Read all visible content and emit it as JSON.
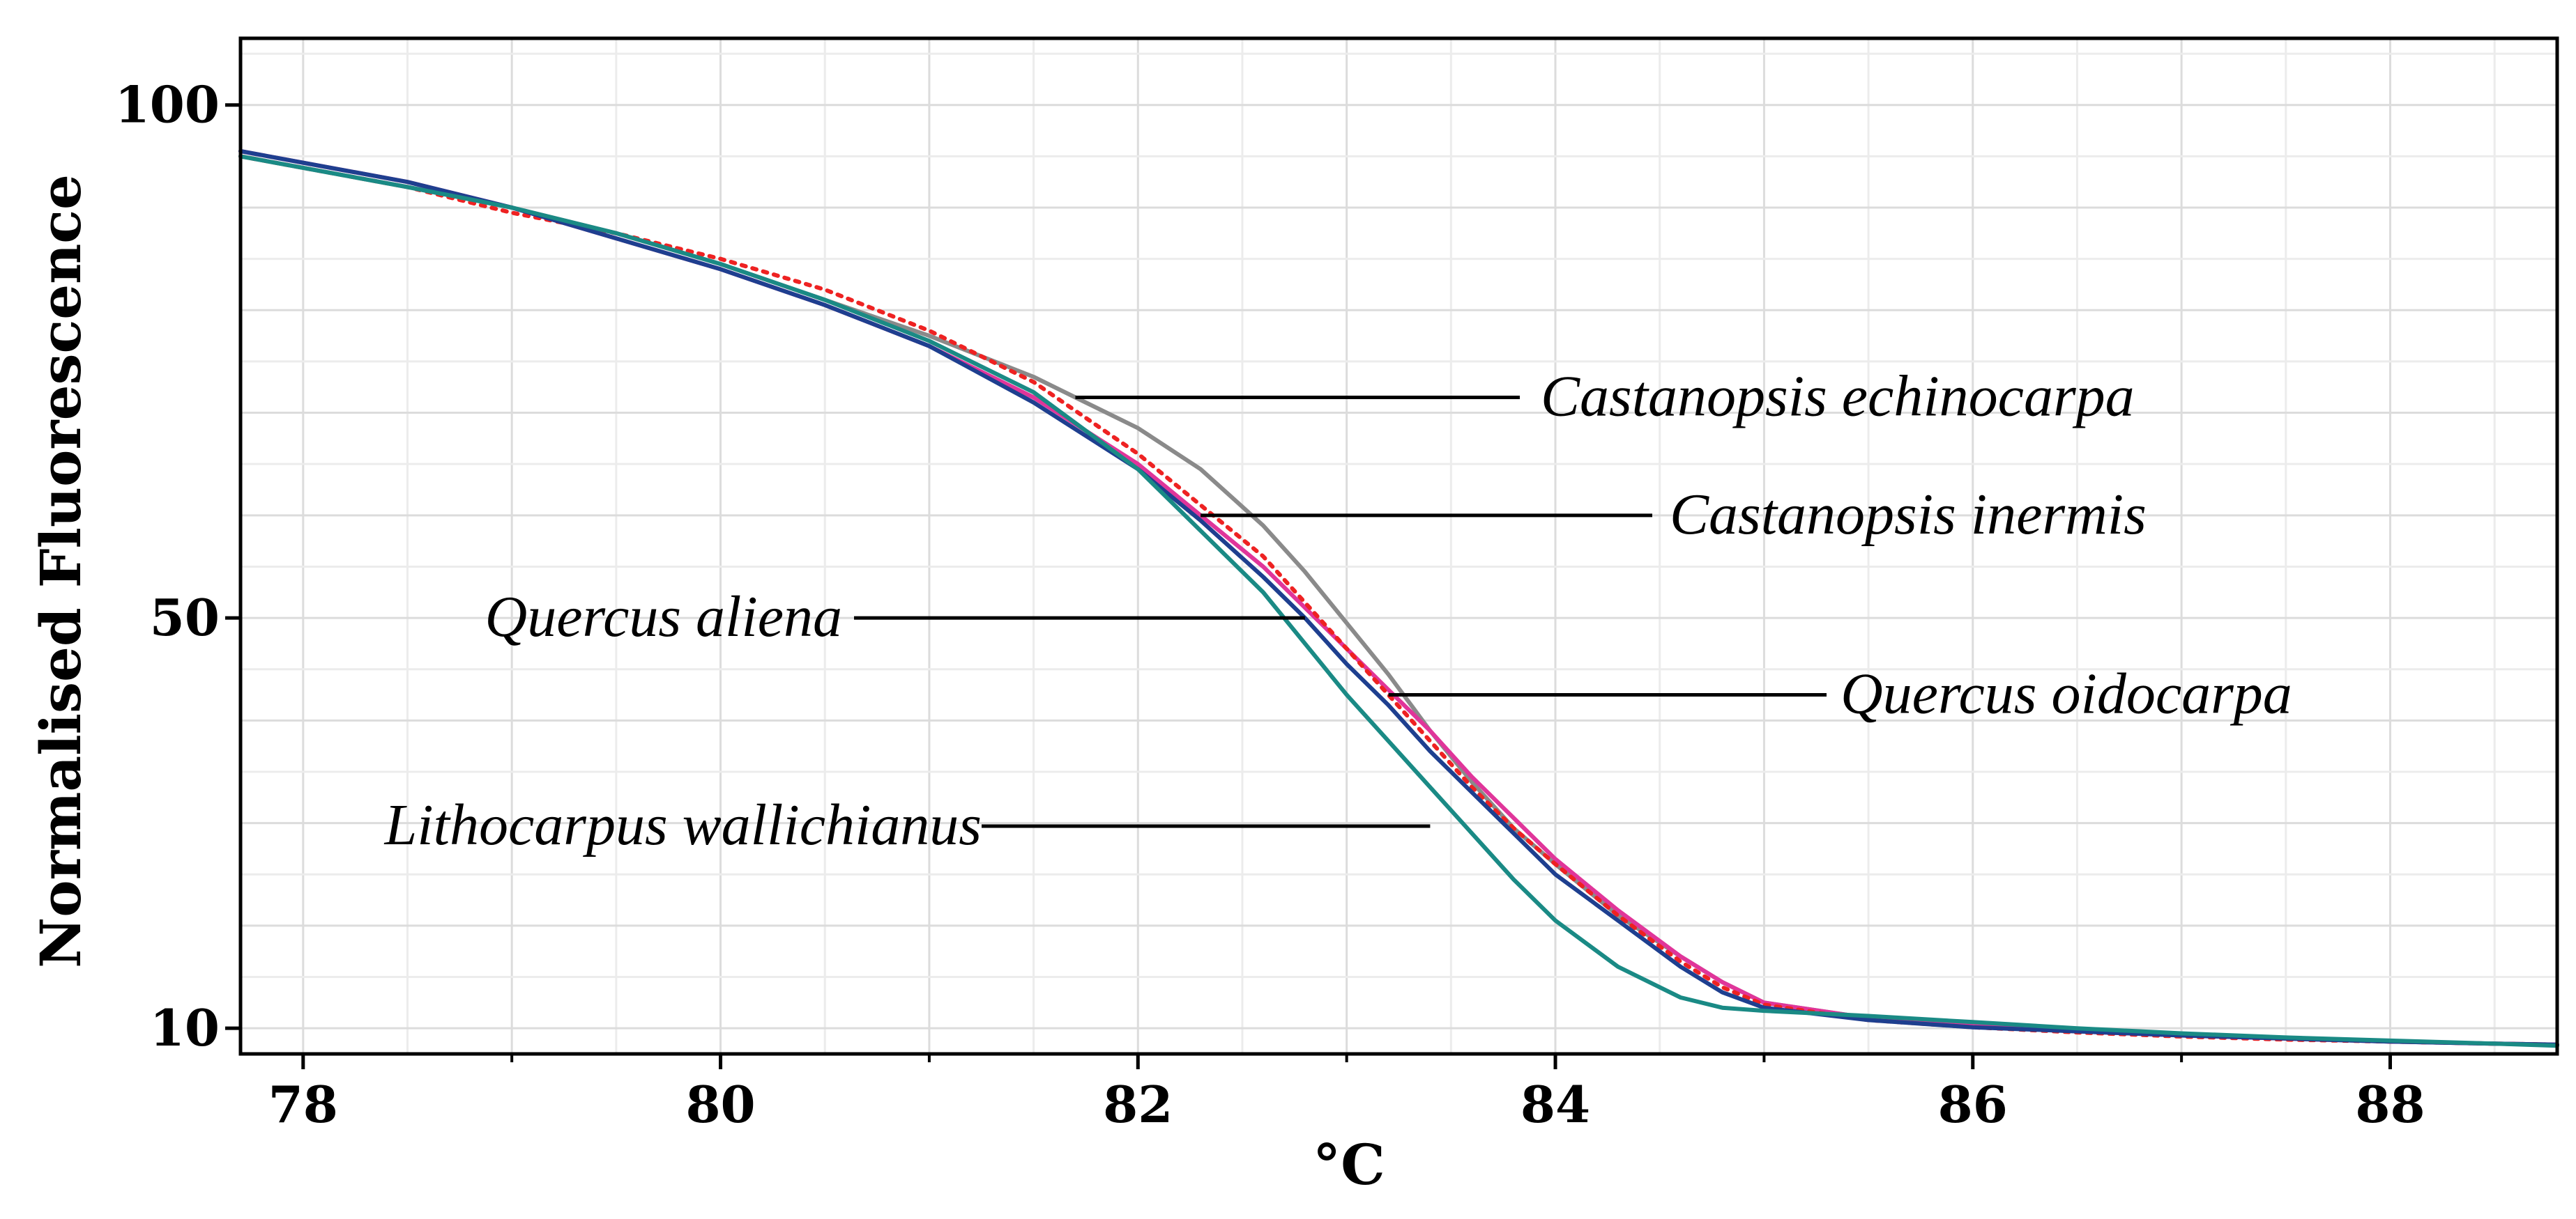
{
  "chart_data": {
    "type": "line",
    "title": "",
    "xlabel": "°C",
    "ylabel": "Normalised Fluorescence",
    "xlim": [
      77.7,
      88.8
    ],
    "ylim": [
      7.5,
      106.5
    ],
    "x_ticks": [
      78,
      80,
      82,
      84,
      86,
      88
    ],
    "x_tick_labels": [
      "78",
      "80",
      "82",
      "84",
      "86",
      "88"
    ],
    "y_ticks": [
      10,
      50,
      100
    ],
    "y_tick_labels": [
      "10",
      "50",
      "100"
    ],
    "grid": true,
    "legend": "none",
    "series": [
      {
        "name": "Castanopsis echinocarpa",
        "color": "#8a8a8a",
        "dash": "solid",
        "x": [
          77.7,
          78.5,
          79.0,
          79.5,
          80.0,
          80.5,
          81.0,
          81.5,
          81.7,
          82.0,
          82.3,
          82.6,
          82.8,
          83.0,
          83.2,
          83.4,
          83.6,
          83.8,
          84.0,
          84.3,
          84.6,
          84.8,
          85.0,
          85.5,
          86.0,
          86.5,
          87.0,
          87.5,
          88.0,
          88.5,
          88.8
        ],
        "y": [
          95,
          92,
          90,
          87.5,
          84.5,
          81,
          77.5,
          73.5,
          71.5,
          68.5,
          64.5,
          59,
          54.5,
          49.5,
          44.5,
          39,
          34,
          29.5,
          26,
          21,
          17,
          14.5,
          12.5,
          11,
          10.3,
          9.8,
          9.4,
          9,
          8.7,
          8.5,
          8.4
        ]
      },
      {
        "name": "Castanopsis inermis",
        "color": "#e0359a",
        "dash": "solid",
        "x": [
          77.7,
          78.5,
          79.0,
          79.5,
          80.0,
          80.5,
          81.0,
          81.5,
          82.0,
          82.3,
          82.6,
          82.8,
          83.0,
          83.2,
          83.4,
          83.6,
          83.8,
          84.0,
          84.3,
          84.6,
          84.8,
          85.0,
          85.5,
          86.0,
          86.5,
          87.0,
          87.5,
          88.0,
          88.5,
          88.8
        ],
        "y": [
          95.5,
          92.5,
          90,
          87,
          84,
          80.5,
          76.5,
          71.5,
          65,
          60,
          55,
          51,
          47,
          43,
          39,
          34.5,
          30.5,
          26.5,
          21.5,
          17,
          14.5,
          12.5,
          11,
          10.2,
          9.7,
          9.3,
          9,
          8.7,
          8.5,
          8.4
        ]
      },
      {
        "name": "Quercus oidocarpa",
        "color": "#ee2222",
        "dash": "dotted",
        "x": [
          77.7,
          78.5,
          79.0,
          79.5,
          80.0,
          80.5,
          81.0,
          81.5,
          82.0,
          82.3,
          82.6,
          82.8,
          83.0,
          83.2,
          83.4,
          83.6,
          83.8,
          84.0,
          84.3,
          84.6,
          84.8,
          85.0,
          85.5,
          86.0,
          86.5,
          87.0,
          87.5,
          88.0,
          88.5,
          88.8
        ],
        "y": [
          95,
          92,
          89.5,
          87.5,
          85,
          82,
          78,
          73,
          66,
          61,
          56,
          51.5,
          47,
          42.5,
          38,
          33.5,
          29.5,
          26,
          21,
          16.5,
          14,
          12.3,
          10.8,
          10.1,
          9.6,
          9.2,
          8.9,
          8.7,
          8.5,
          8.4
        ]
      },
      {
        "name": "Quercus aliena",
        "color": "#1e3f8f",
        "dash": "solid",
        "x": [
          77.7,
          78.5,
          79.0,
          79.5,
          80.0,
          80.5,
          81.0,
          81.5,
          82.0,
          82.3,
          82.6,
          82.8,
          83.0,
          83.2,
          83.4,
          83.6,
          83.8,
          84.0,
          84.3,
          84.6,
          84.8,
          85.0,
          85.5,
          86.0,
          86.5,
          87.0,
          87.5,
          88.0,
          88.5,
          88.8
        ],
        "y": [
          95.5,
          92.5,
          90,
          87,
          84,
          80.5,
          76.5,
          71,
          64.5,
          59.5,
          54,
          50,
          45.5,
          41.5,
          37,
          33,
          29,
          25,
          20.5,
          16,
          13.5,
          12,
          10.8,
          10.1,
          9.7,
          9.3,
          9,
          8.7,
          8.5,
          8.4
        ]
      },
      {
        "name": "Lithocarpus wallichianus",
        "color": "#1a8a85",
        "dash": "solid",
        "x": [
          77.7,
          78.5,
          79.0,
          79.5,
          80.0,
          80.5,
          81.0,
          81.5,
          82.0,
          82.3,
          82.6,
          82.8,
          83.0,
          83.2,
          83.4,
          83.6,
          83.8,
          84.0,
          84.3,
          84.6,
          84.8,
          85.0,
          85.5,
          86.0,
          86.5,
          87.0,
          87.5,
          88.0,
          88.5,
          88.8
        ],
        "y": [
          95,
          92,
          90,
          87.5,
          84.5,
          81,
          77,
          72,
          64.5,
          58.5,
          52.5,
          47.5,
          42.5,
          38,
          33.5,
          29,
          24.5,
          20.5,
          16,
          13,
          12,
          11.7,
          11.2,
          10.6,
          10,
          9.5,
          9.1,
          8.8,
          8.5,
          8.3
        ]
      }
    ],
    "annotations": [
      {
        "text": "Castanopsis echinocarpa",
        "series": "Castanopsis echinocarpa",
        "at_x": 81.7,
        "at_y": 71.5
      },
      {
        "text": "Castanopsis inermis",
        "series": "Castanopsis inermis",
        "at_x": 82.3,
        "at_y": 60
      },
      {
        "text": "Quercus aliena",
        "series": "Quercus aliena",
        "at_x": 82.8,
        "at_y": 50
      },
      {
        "text": "Quercus oidocarpa",
        "series": "Quercus oidocarpa",
        "at_x": 83.2,
        "at_y": 42.5
      },
      {
        "text": "Lithocarpus wallichianus",
        "series": "Lithocarpus wallichianus",
        "at_x": 83.4,
        "at_y": 29.7
      }
    ]
  }
}
